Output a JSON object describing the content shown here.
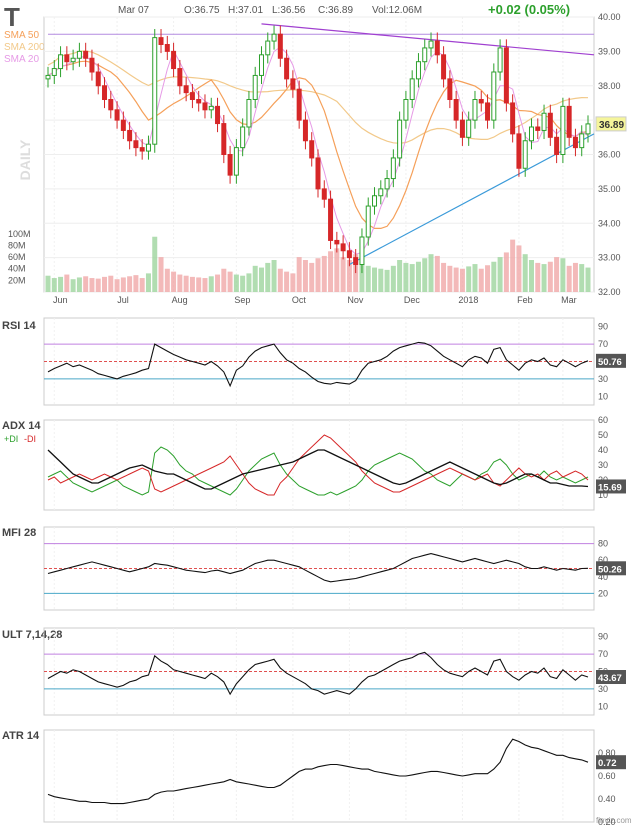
{
  "header": {
    "ticker": "T",
    "date": "Mar 07",
    "open": "O:36.75",
    "high": "H:37.01",
    "low": "L:36.56",
    "close": "C:36.89",
    "volume": "Vol:12.06M",
    "change": "+0.02 (0.05%)",
    "brand": "finviz.com"
  },
  "colors": {
    "up": "#2ca02c",
    "down": "#d62728",
    "sma50": "#f5a05a",
    "sma200": "#f2c98a",
    "sma20": "#e69ae6",
    "resistance": "#a040d0",
    "support": "#3a9ad9",
    "overbought": "#c080e0",
    "oversold": "#4aa8c8",
    "midline": "#e05050"
  },
  "chart_data": [
    {
      "type": "candlestick",
      "panel": "price",
      "watermark": "DAILY",
      "legend": [
        "SMA 50",
        "SMA 200",
        "SMA 20"
      ],
      "x_ticks": [
        "Jun",
        "Jul",
        "Aug",
        "Sep",
        "Oct",
        "Nov",
        "Dec",
        "2018",
        "Feb",
        "Mar"
      ],
      "y_ticks": [
        "40.00",
        "39.00",
        "38.00",
        "37.00",
        "36.00",
        "35.00",
        "34.00",
        "33.00",
        "32.00"
      ],
      "ylim": [
        32,
        40
      ],
      "last_price": "36.89",
      "volume_ticks": [
        "100M",
        "80M",
        "60M",
        "40M",
        "20M"
      ],
      "closes": [
        38.3,
        38.5,
        38.9,
        38.7,
        38.8,
        39.0,
        38.8,
        38.4,
        38.0,
        37.6,
        37.3,
        37.0,
        36.7,
        36.4,
        36.2,
        36.1,
        36.3,
        39.4,
        39.2,
        39.0,
        38.5,
        38.0,
        37.8,
        37.6,
        37.5,
        37.3,
        37.4,
        36.9,
        36.0,
        35.4,
        36.2,
        36.8,
        37.6,
        38.3,
        38.9,
        39.3,
        39.5,
        38.8,
        38.2,
        37.9,
        37.0,
        36.4,
        35.9,
        35.0,
        34.7,
        33.5,
        33.4,
        33.2,
        33.0,
        32.8,
        33.6,
        34.5,
        34.8,
        35.0,
        35.3,
        35.9,
        37.0,
        37.6,
        38.2,
        38.7,
        39.1,
        39.3,
        38.9,
        38.2,
        37.6,
        37.0,
        36.5,
        37.0,
        37.6,
        37.5,
        37.0,
        38.4,
        39.1,
        37.5,
        36.6,
        35.6,
        36.4,
        36.8,
        36.7,
        37.2,
        36.5,
        36.0,
        37.4,
        36.5,
        36.2,
        36.6,
        36.89
      ],
      "volumes": [
        28,
        24,
        26,
        30,
        22,
        25,
        27,
        24,
        23,
        26,
        28,
        22,
        25,
        27,
        29,
        24,
        32,
        95,
        60,
        40,
        35,
        30,
        28,
        26,
        25,
        24,
        27,
        30,
        40,
        35,
        30,
        28,
        32,
        45,
        42,
        50,
        55,
        40,
        35,
        32,
        60,
        55,
        50,
        58,
        62,
        70,
        75,
        60,
        55,
        65,
        50,
        45,
        42,
        40,
        38,
        45,
        55,
        50,
        48,
        52,
        58,
        65,
        62,
        50,
        45,
        42,
        40,
        44,
        48,
        40,
        46,
        52,
        60,
        68,
        90,
        80,
        65,
        55,
        50,
        48,
        52,
        60,
        58,
        45,
        50,
        48,
        42
      ]
    },
    {
      "type": "line",
      "panel": "indicator",
      "name": "RSI 14",
      "y_ticks": [
        "90",
        "70",
        "50",
        "30",
        "10"
      ],
      "ylim": [
        0,
        100
      ],
      "last_value": "50.76",
      "levels": [
        70,
        50,
        30
      ],
      "values": [
        38,
        42,
        45,
        48,
        44,
        46,
        43,
        40,
        36,
        34,
        32,
        30,
        33,
        35,
        37,
        40,
        42,
        70,
        66,
        62,
        58,
        55,
        52,
        50,
        48,
        46,
        50,
        45,
        38,
        22,
        40,
        45,
        55,
        62,
        66,
        68,
        70,
        60,
        52,
        48,
        42,
        38,
        32,
        27,
        25,
        24,
        26,
        25,
        24,
        28,
        40,
        48,
        50,
        52,
        56,
        62,
        66,
        68,
        70,
        72,
        71,
        68,
        62,
        56,
        52,
        48,
        44,
        52,
        56,
        54,
        48,
        64,
        66,
        52,
        46,
        40,
        48,
        52,
        50,
        54,
        46,
        44,
        52,
        48,
        44,
        48,
        50.76
      ]
    },
    {
      "type": "line",
      "panel": "indicator",
      "name": "ADX 14",
      "legend": [
        "+DI",
        "-DI"
      ],
      "y_ticks": [
        "60",
        "50",
        "40",
        "30",
        "20",
        "10"
      ],
      "ylim": [
        0,
        60
      ],
      "last_value": "15.69",
      "adx": [
        40,
        36,
        32,
        28,
        24,
        22,
        20,
        18,
        18,
        20,
        22,
        24,
        26,
        28,
        29,
        30,
        28,
        26,
        25,
        24,
        24,
        22,
        20,
        18,
        16,
        14,
        14,
        16,
        18,
        20,
        22,
        24,
        25,
        26,
        27,
        28,
        29,
        30,
        31,
        32,
        34,
        36,
        38,
        40,
        40,
        38,
        36,
        34,
        32,
        30,
        28,
        26,
        24,
        22,
        20,
        18,
        17,
        18,
        20,
        22,
        24,
        26,
        28,
        30,
        32,
        30,
        28,
        26,
        24,
        22,
        20,
        18,
        17,
        18,
        20,
        22,
        24,
        24,
        22,
        20,
        18,
        18,
        17,
        16,
        16,
        16,
        15.69
      ],
      "plus_di": [
        22,
        24,
        26,
        22,
        18,
        16,
        14,
        12,
        14,
        16,
        18,
        20,
        16,
        14,
        12,
        10,
        12,
        38,
        42,
        40,
        36,
        30,
        26,
        24,
        20,
        18,
        16,
        14,
        12,
        10,
        14,
        20,
        26,
        30,
        34,
        36,
        38,
        30,
        24,
        20,
        16,
        14,
        12,
        10,
        10,
        12,
        10,
        12,
        14,
        16,
        20,
        26,
        30,
        32,
        34,
        36,
        38,
        36,
        34,
        30,
        26,
        24,
        20,
        18,
        16,
        20,
        24,
        22,
        20,
        24,
        26,
        32,
        34,
        30,
        24,
        20,
        22,
        24,
        22,
        26,
        22,
        20,
        22,
        20,
        18,
        20,
        22
      ],
      "minus_di": [
        20,
        22,
        18,
        20,
        22,
        24,
        22,
        20,
        22,
        24,
        22,
        20,
        22,
        24,
        26,
        28,
        26,
        14,
        12,
        14,
        16,
        18,
        20,
        22,
        24,
        26,
        28,
        30,
        32,
        36,
        30,
        24,
        18,
        14,
        12,
        10,
        10,
        18,
        22,
        28,
        34,
        38,
        42,
        46,
        50,
        48,
        44,
        40,
        36,
        32,
        26,
        22,
        18,
        16,
        14,
        12,
        12,
        14,
        16,
        18,
        20,
        22,
        24,
        26,
        28,
        26,
        24,
        22,
        20,
        22,
        24,
        18,
        16,
        20,
        24,
        28,
        24,
        22,
        24,
        20,
        24,
        26,
        22,
        24,
        26,
        24,
        20
      ]
    },
    {
      "type": "line",
      "panel": "indicator",
      "name": "MFI 28",
      "y_ticks": [
        "80",
        "60",
        "40",
        "20"
      ],
      "ylim": [
        0,
        100
      ],
      "last_value": "50.26",
      "levels": [
        80,
        50,
        20
      ],
      "values": [
        44,
        46,
        48,
        50,
        52,
        54,
        56,
        58,
        56,
        54,
        52,
        50,
        48,
        46,
        48,
        50,
        52,
        56,
        55,
        54,
        52,
        50,
        48,
        47,
        46,
        45,
        47,
        48,
        46,
        44,
        46,
        48,
        52,
        56,
        58,
        60,
        60,
        58,
        56,
        54,
        52,
        48,
        44,
        40,
        36,
        34,
        35,
        36,
        37,
        38,
        40,
        42,
        44,
        46,
        48,
        50,
        54,
        58,
        62,
        64,
        66,
        68,
        66,
        64,
        62,
        60,
        58,
        60,
        62,
        60,
        58,
        56,
        58,
        60,
        58,
        56,
        52,
        50,
        50,
        52,
        50,
        48,
        50,
        49,
        48,
        50,
        50.26
      ]
    },
    {
      "type": "line",
      "panel": "indicator",
      "name": "ULT 7,14,28",
      "y_ticks": [
        "90",
        "70",
        "50",
        "30",
        "10"
      ],
      "ylim": [
        0,
        100
      ],
      "last_value": "43.67",
      "levels": [
        70,
        50,
        30
      ],
      "values": [
        42,
        46,
        50,
        48,
        52,
        50,
        46,
        42,
        38,
        36,
        34,
        32,
        34,
        38,
        40,
        44,
        46,
        68,
        62,
        58,
        52,
        50,
        48,
        46,
        44,
        42,
        48,
        44,
        38,
        24,
        36,
        44,
        52,
        58,
        60,
        62,
        64,
        54,
        48,
        44,
        40,
        36,
        30,
        28,
        24,
        26,
        28,
        26,
        24,
        30,
        38,
        44,
        46,
        50,
        54,
        58,
        62,
        64,
        66,
        70,
        72,
        66,
        58,
        52,
        48,
        46,
        44,
        50,
        54,
        50,
        46,
        62,
        64,
        50,
        44,
        40,
        46,
        50,
        48,
        54,
        44,
        42,
        52,
        46,
        40,
        46,
        43.67
      ]
    },
    {
      "type": "line",
      "panel": "indicator",
      "name": "ATR 14",
      "y_ticks": [
        "0.80",
        "0.60",
        "0.40",
        "0.20"
      ],
      "ylim": [
        0.2,
        1.0
      ],
      "last_value": "0.72",
      "values": [
        0.44,
        0.42,
        0.41,
        0.4,
        0.39,
        0.38,
        0.38,
        0.37,
        0.37,
        0.37,
        0.36,
        0.36,
        0.36,
        0.37,
        0.38,
        0.39,
        0.4,
        0.44,
        0.46,
        0.47,
        0.47,
        0.48,
        0.49,
        0.5,
        0.51,
        0.52,
        0.53,
        0.54,
        0.55,
        0.57,
        0.55,
        0.54,
        0.53,
        0.52,
        0.51,
        0.5,
        0.5,
        0.52,
        0.56,
        0.6,
        0.64,
        0.66,
        0.66,
        0.68,
        0.69,
        0.7,
        0.7,
        0.69,
        0.68,
        0.67,
        0.66,
        0.66,
        0.64,
        0.63,
        0.62,
        0.61,
        0.6,
        0.6,
        0.61,
        0.62,
        0.63,
        0.64,
        0.64,
        0.63,
        0.62,
        0.61,
        0.6,
        0.61,
        0.62,
        0.62,
        0.62,
        0.66,
        0.72,
        0.84,
        0.92,
        0.9,
        0.87,
        0.85,
        0.84,
        0.82,
        0.8,
        0.78,
        0.78,
        0.76,
        0.75,
        0.74,
        0.72
      ]
    }
  ]
}
